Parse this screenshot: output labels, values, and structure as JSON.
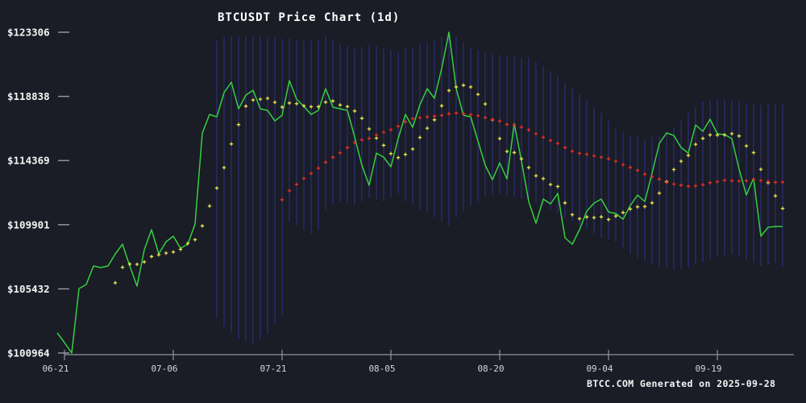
{
  "title": "BTCUSDT Price Chart (1d)",
  "footer": "BTCC.COM Generated on 2025-09-28",
  "colors": {
    "background": "#1a1c26",
    "price_line": "#35d03f",
    "ma7_dots": "#e8e455",
    "ma30_dots": "#e62e2e",
    "range_bars": "#2d2f8f",
    "axis": "#8f959e",
    "x_tick_label": "#d4d7db",
    "y_tick_label": "#f5f5f5",
    "title_text": "#ffffff",
    "footer_text": "#f5f5f5"
  },
  "chart_data": {
    "type": "line",
    "title": "BTCUSDT Price Chart (1d)",
    "xlabel": "",
    "ylabel": "",
    "ylim": [
      100964,
      123306
    ],
    "grid": false,
    "legend": "none",
    "y_tick_labels": [
      "$123306",
      "$118838",
      "$114369",
      "$109901",
      "$105432",
      "$100964"
    ],
    "x_ticks": [
      {
        "label": "06-21",
        "index": 1
      },
      {
        "label": "07-06",
        "index": 16
      },
      {
        "label": "07-21",
        "index": 31
      },
      {
        "label": "08-05",
        "index": 46
      },
      {
        "label": "08-20",
        "index": 61
      },
      {
        "label": "09-04",
        "index": 76
      },
      {
        "label": "09-19",
        "index": 91
      }
    ],
    "start_date": "2025-06-20",
    "end_date": "2025-09-28",
    "series": [
      {
        "name": "close_price",
        "style": "line",
        "color_key": "price_line",
        "values": [
          102367,
          101694,
          100964,
          105455,
          105735,
          107027,
          106915,
          107027,
          107869,
          108542,
          107027,
          105623,
          108149,
          109553,
          107869,
          108710,
          109103,
          108261,
          108542,
          109946,
          116289,
          117581,
          117412,
          119096,
          119826,
          117974,
          118928,
          119265,
          117974,
          117861,
          117131,
          117525,
          119938,
          118647,
          118142,
          117581,
          117861,
          119377,
          118086,
          117974,
          117861,
          116009,
          114044,
          112640,
          114886,
          114605,
          113931,
          115896,
          117581,
          116682,
          118254,
          119377,
          118703,
          120780,
          123306,
          119377,
          117525,
          117412,
          115728,
          114044,
          113033,
          114212,
          113089,
          116962,
          114325,
          111517,
          110001,
          111685,
          111348,
          112078,
          108991,
          108542,
          109553,
          110844,
          111405,
          111685,
          110787,
          110675,
          110282,
          111236,
          111966,
          111517,
          113482,
          115559,
          116289,
          116121,
          115279,
          114886,
          116850,
          116401,
          117244,
          116233,
          116177,
          115896,
          113763,
          111966,
          113145,
          109103,
          109720,
          109777,
          109777
        ]
      },
      {
        "name": "ma7",
        "style": "plus_dots",
        "color_key": "ma7_dots",
        "derived_from": "close_price",
        "window": 7,
        "start_index": 8
      },
      {
        "name": "ma30",
        "style": "plus_dots",
        "color_key": "ma30_dots",
        "derived_from": "close_price",
        "window": 30,
        "start_index": 31
      },
      {
        "name": "daily_range_bars",
        "style": "vertical_bars",
        "color_key": "range_bars",
        "start_index": 22,
        "high": [
          122745,
          122969,
          123025,
          123025,
          123025,
          123025,
          123025,
          122969,
          122913,
          122857,
          122857,
          122745,
          122745,
          122745,
          122745,
          123025,
          122745,
          122464,
          122352,
          122183,
          122296,
          122464,
          122352,
          122183,
          122071,
          121903,
          122183,
          122296,
          122464,
          122632,
          122745,
          123025,
          123306,
          123025,
          122632,
          122183,
          122071,
          121903,
          121846,
          121734,
          121678,
          121622,
          121566,
          121510,
          121229,
          120948,
          120611,
          120218,
          119826,
          119377,
          118984,
          118534,
          118142,
          117692,
          117131,
          116569,
          116345,
          116120,
          116008,
          115896,
          116008,
          116120,
          116401,
          116682,
          117187,
          117692,
          118086,
          118478,
          118590,
          118703,
          118647,
          118534,
          118478,
          118366,
          118310,
          118254,
          118310,
          118366,
          118254
        ],
        "low": [
          103378,
          102817,
          102368,
          101975,
          101750,
          101582,
          101919,
          102255,
          102929,
          103658,
          110114,
          109833,
          109553,
          109272,
          109553,
          110956,
          111236,
          111517,
          111405,
          111236,
          111517,
          111798,
          111685,
          111517,
          111798,
          112078,
          111517,
          111236,
          110956,
          110675,
          110394,
          110114,
          109833,
          110394,
          110844,
          111236,
          111517,
          111798,
          111966,
          112078,
          111966,
          111798,
          111685,
          111517,
          111405,
          111236,
          110956,
          110675,
          110394,
          110114,
          109833,
          109553,
          109272,
          108991,
          108879,
          108710,
          108317,
          107869,
          107588,
          107307,
          107139,
          106914,
          106858,
          106746,
          106802,
          106914,
          107139,
          107307,
          107532,
          107700,
          107756,
          107812,
          107644,
          107475,
          107251,
          107026,
          107139,
          107251,
          107026
        ]
      }
    ]
  }
}
